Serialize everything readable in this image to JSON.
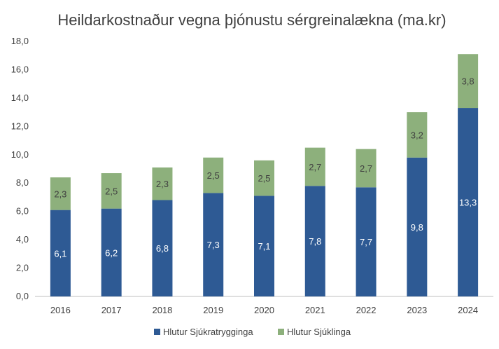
{
  "chart_data": {
    "type": "bar",
    "stacked": true,
    "title": "Heildarkostnaður vegna þjónustu sérgreinalækna (ma.kr)",
    "categories": [
      "2016",
      "2017",
      "2018",
      "2019",
      "2020",
      "2021",
      "2022",
      "2023",
      "2024"
    ],
    "series": [
      {
        "name": "Hlutur Sjúkratrygginga",
        "color": "#2E5A94",
        "values": [
          6.1,
          6.2,
          6.8,
          7.3,
          7.1,
          7.8,
          7.7,
          9.8,
          13.3
        ],
        "labels": [
          "6,1",
          "6,2",
          "6,8",
          "7,3",
          "7,1",
          "7,8",
          "7,7",
          "9,8",
          "13,3"
        ],
        "label_color": "#ffffff"
      },
      {
        "name": "Hlutur Sjúklinga",
        "color": "#8DB07C",
        "values": [
          2.3,
          2.5,
          2.3,
          2.5,
          2.5,
          2.7,
          2.7,
          3.2,
          3.8
        ],
        "labels": [
          "2,3",
          "2,5",
          "2,3",
          "2,5",
          "2,5",
          "2,7",
          "2,7",
          "3,2",
          "3,8"
        ],
        "label_color": "#404040"
      }
    ],
    "ylim": [
      0,
      18
    ],
    "yticks": [
      "0,0",
      "2,0",
      "4,0",
      "6,0",
      "8,0",
      "10,0",
      "12,0",
      "14,0",
      "16,0",
      "18,0"
    ],
    "grid": false,
    "legend_position": "bottom"
  }
}
